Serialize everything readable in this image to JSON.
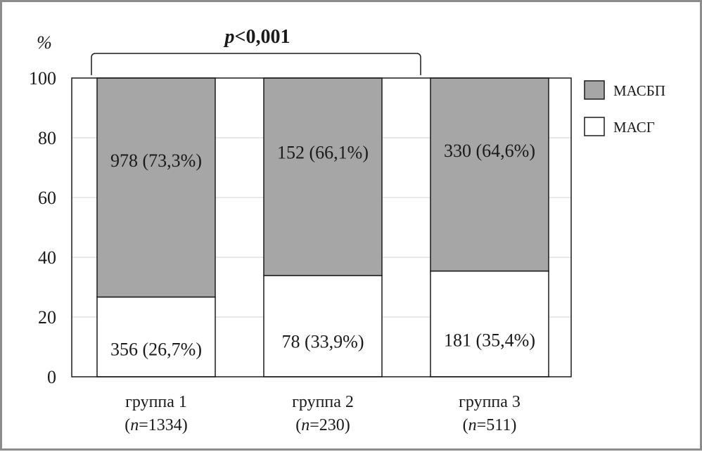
{
  "chart_data": {
    "type": "bar",
    "stacked": true,
    "y_unit": "%",
    "ylim": [
      0,
      100
    ],
    "yticks": [
      0,
      20,
      40,
      60,
      80,
      100
    ],
    "grid": true,
    "legend_position": "right",
    "significance": "<0,001",
    "significance_var": "p",
    "categories": [
      {
        "name": "группа 1",
        "n_label": "(n=1334)",
        "n_var": "n",
        "n_value": "=1334)"
      },
      {
        "name": "группа 2",
        "n_label": "(n=230)",
        "n_var": "n",
        "n_value": "=230)"
      },
      {
        "name": "группа 3",
        "n_label": "(n=511)",
        "n_var": "n",
        "n_value": "=511)"
      }
    ],
    "series": [
      {
        "name": "МАСГ",
        "color": "#ffffff",
        "values": [
          26.7,
          33.9,
          35.4
        ],
        "labels": [
          "356 (26,7%)",
          "78 (33,9%)",
          "181 (35,4%)"
        ]
      },
      {
        "name": "МАСБП",
        "color": "#a6a6a6",
        "values": [
          73.3,
          66.1,
          64.6
        ],
        "labels": [
          "978 (73,3%)",
          "152 (66,1%)",
          "330 (64,6%)"
        ]
      }
    ]
  }
}
